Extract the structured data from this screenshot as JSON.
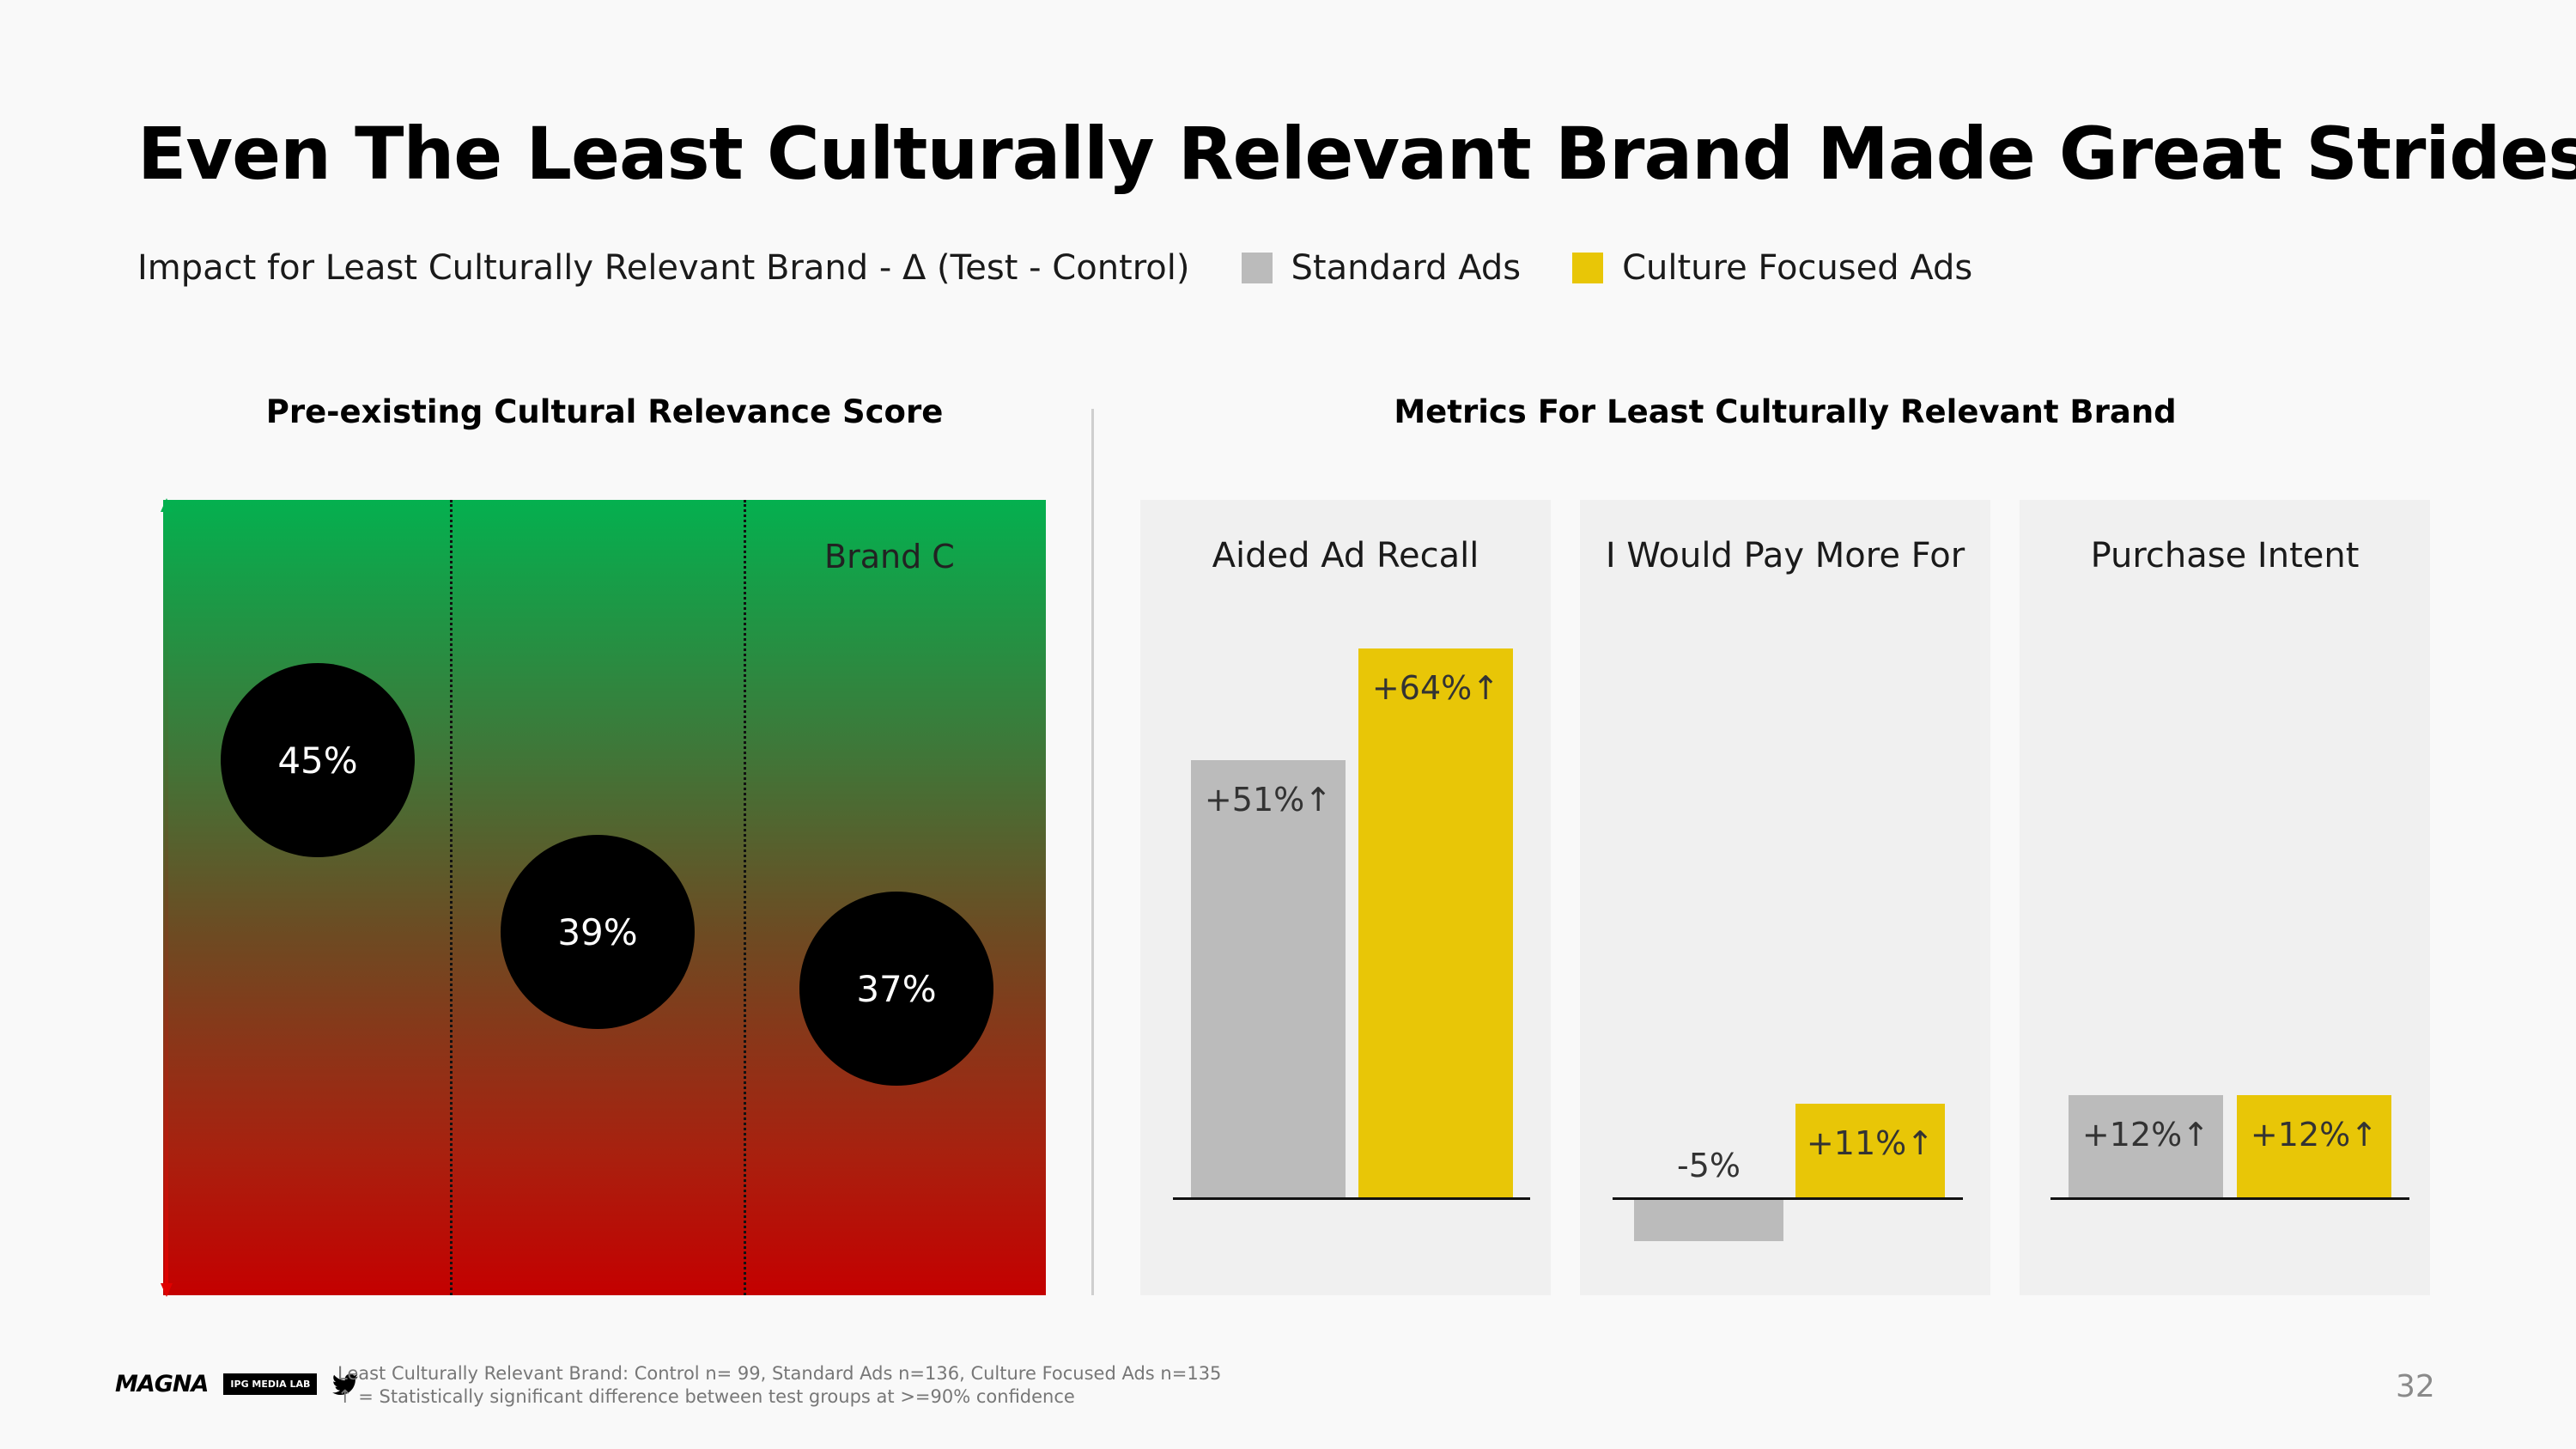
{
  "title": "Even The Least Culturally Relevant Brand Made Great Strides",
  "subtitle": "Impact for Least Culturally Relevant Brand - Δ (Test - Control)",
  "legend": [
    {
      "label": "Standard Ads",
      "color": "#bbbbbb"
    },
    {
      "label": "Culture Focused Ads",
      "color": "#e8c607"
    }
  ],
  "left_section_title": "Pre-existing Cultural Relevance Score",
  "right_section_title": "Metrics For Least Culturally Relevant Brand",
  "colors": {
    "standard": "#bbbbbb",
    "culture": "#e8c607",
    "gradient_top": "#04b04f",
    "gradient_bottom": "#c40000"
  },
  "chart_data": [
    {
      "type": "scatter",
      "title": "Pre-existing Cultural Relevance Score",
      "points": [
        {
          "column": 1,
          "value": 45,
          "label": "45%"
        },
        {
          "column": 2,
          "value": 39,
          "label": "39%"
        },
        {
          "column": 3,
          "value": 37,
          "label": "37%"
        }
      ],
      "column_labels": [
        "",
        "",
        "Brand C"
      ],
      "grid": "dotted vertical separators",
      "background": "gradient green (high) to red (low)"
    },
    {
      "type": "bar",
      "title": "Aided Ad Recall",
      "series": [
        {
          "name": "Standard Ads",
          "values": [
            51
          ],
          "labels": [
            "+51%↑"
          ]
        },
        {
          "name": "Culture Focused Ads",
          "values": [
            64
          ],
          "labels": [
            "+64%↑"
          ]
        }
      ],
      "ylim": [
        -10,
        70
      ]
    },
    {
      "type": "bar",
      "title": "I Would Pay More For",
      "series": [
        {
          "name": "Standard Ads",
          "values": [
            -5
          ],
          "labels": [
            "-5%"
          ]
        },
        {
          "name": "Culture Focused Ads",
          "values": [
            11
          ],
          "labels": [
            "+11%↑"
          ]
        }
      ],
      "ylim": [
        -10,
        70
      ]
    },
    {
      "type": "bar",
      "title": "Purchase Intent",
      "series": [
        {
          "name": "Standard Ads",
          "values": [
            12
          ],
          "labels": [
            "+12%↑"
          ]
        },
        {
          "name": "Culture Focused Ads",
          "values": [
            12
          ],
          "labels": [
            "+12%↑"
          ]
        }
      ],
      "ylim": [
        -10,
        70
      ]
    }
  ],
  "footer": {
    "logo_text": "MAGNA",
    "ipg_badge": "IPG MEDIA LAB",
    "twitter_icon": "twitter-icon",
    "footnote_line1": "Least Culturally Relevant Brand: Control n= 99, Standard Ads n=136, Culture Focused Ads n=135",
    "footnote_line2": "↑ = Statistically significant difference between test groups at >=90% confidence",
    "page_number": "32"
  }
}
